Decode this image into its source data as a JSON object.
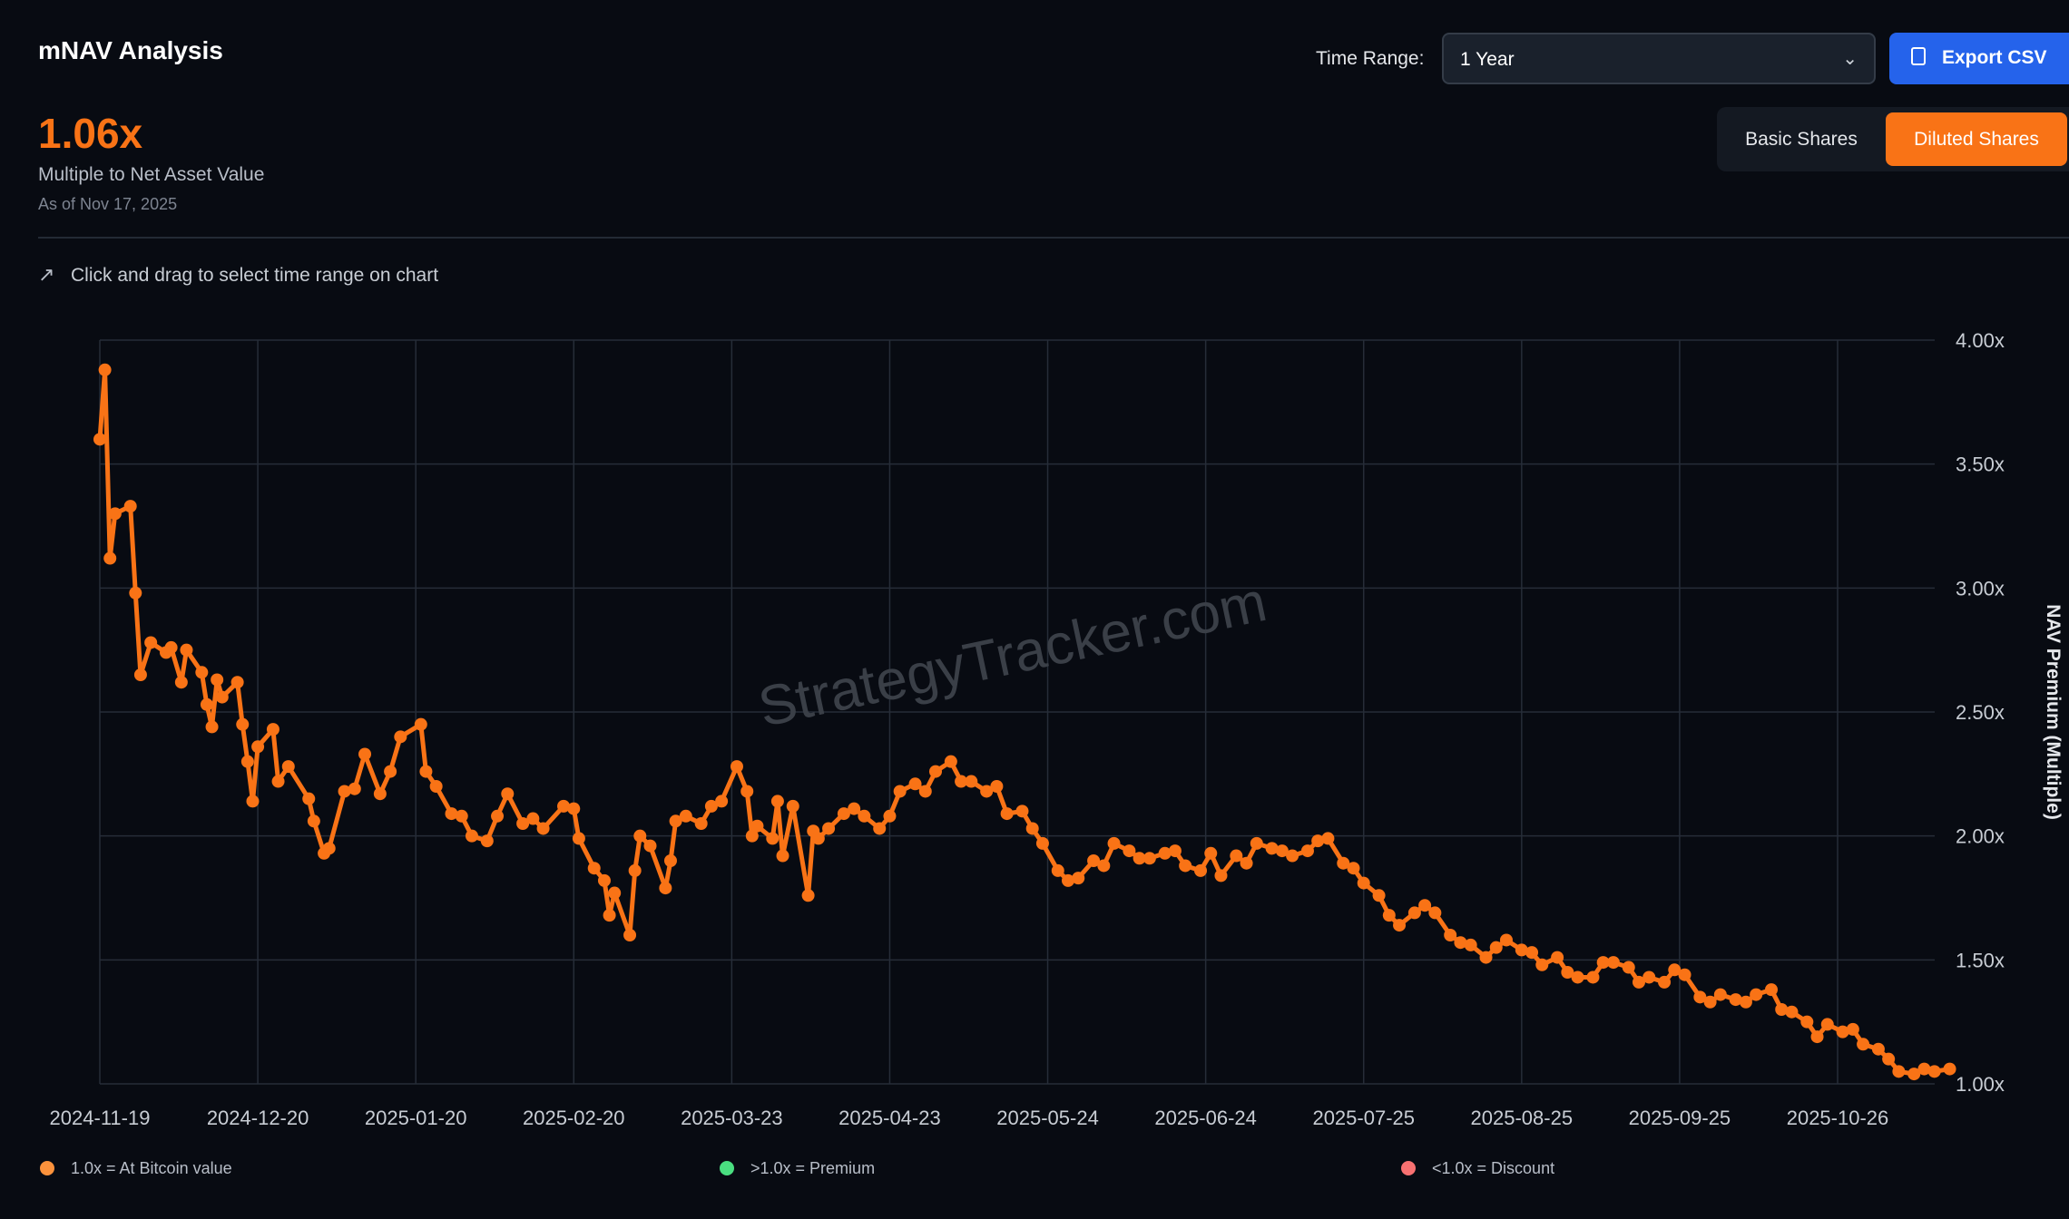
{
  "header": {
    "title": "mNAV Analysis",
    "value": "1.06x",
    "value_label": "Multiple to Net Asset Value",
    "as_of": "As of Nov 17, 2025"
  },
  "controls": {
    "time_range_label": "Time Range:",
    "time_range_value": "1 Year",
    "export_label": "Export CSV",
    "basic_label": "Basic Shares",
    "diluted_label": "Diluted Shares",
    "selected_share_mode": "Diluted Shares"
  },
  "hint": "Click and drag to select time range on chart",
  "watermark": "StrategyTracker.com",
  "legend": [
    {
      "label": "1.0x = At Bitcoin value",
      "color": "#fb923c"
    },
    {
      "label": ">1.0x = Premium",
      "color": "#4ade80"
    },
    {
      "label": "<1.0x = Discount",
      "color": "#f87171"
    }
  ],
  "colors": {
    "series": "#f97316",
    "accent": "#f97316",
    "button": "#2563eb",
    "background": "#080b12"
  },
  "chart_data": {
    "type": "line",
    "ylabel": "NAV Premium (Multiple)",
    "ylim": [
      1.0,
      4.0
    ],
    "yticks": [
      "1.00x",
      "1.50x",
      "2.00x",
      "2.50x",
      "3.00x",
      "3.50x",
      "4.00x"
    ],
    "xticks": [
      "2024-11-19",
      "2024-12-20",
      "2025-01-20",
      "2025-02-20",
      "2025-03-23",
      "2025-04-23",
      "2025-05-24",
      "2025-06-24",
      "2025-07-25",
      "2025-08-25",
      "2025-09-25",
      "2025-10-26"
    ],
    "grid": true,
    "legend_position": "bottom",
    "x": [
      "2024-11-19",
      "2024-11-20",
      "2024-11-21",
      "2024-11-22",
      "2024-11-25",
      "2024-11-26",
      "2024-11-27",
      "2024-11-29",
      "2024-12-02",
      "2024-12-03",
      "2024-12-05",
      "2024-12-06",
      "2024-12-09",
      "2024-12-10",
      "2024-12-11",
      "2024-12-12",
      "2024-12-13",
      "2024-12-16",
      "2024-12-17",
      "2024-12-18",
      "2024-12-19",
      "2024-12-20",
      "2024-12-23",
      "2024-12-24",
      "2024-12-26",
      "2024-12-30",
      "2024-12-31",
      "2025-01-02",
      "2025-01-03",
      "2025-01-06",
      "2025-01-08",
      "2025-01-10",
      "2025-01-13",
      "2025-01-15",
      "2025-01-17",
      "2025-01-21",
      "2025-01-22",
      "2025-01-24",
      "2025-01-27",
      "2025-01-29",
      "2025-01-31",
      "2025-02-03",
      "2025-02-05",
      "2025-02-07",
      "2025-02-10",
      "2025-02-12",
      "2025-02-14",
      "2025-02-18",
      "2025-02-20",
      "2025-02-21",
      "2025-02-24",
      "2025-02-26",
      "2025-02-27",
      "2025-02-28",
      "2025-03-03",
      "2025-03-04",
      "2025-03-05",
      "2025-03-07",
      "2025-03-10",
      "2025-03-11",
      "2025-03-12",
      "2025-03-14",
      "2025-03-17",
      "2025-03-19",
      "2025-03-21",
      "2025-03-24",
      "2025-03-26",
      "2025-03-27",
      "2025-03-28",
      "2025-03-31",
      "2025-04-01",
      "2025-04-02",
      "2025-04-04",
      "2025-04-07",
      "2025-04-08",
      "2025-04-09",
      "2025-04-11",
      "2025-04-14",
      "2025-04-16",
      "2025-04-18",
      "2025-04-21",
      "2025-04-23",
      "2025-04-25",
      "2025-04-28",
      "2025-04-30",
      "2025-05-02",
      "2025-05-05",
      "2025-05-07",
      "2025-05-09",
      "2025-05-12",
      "2025-05-14",
      "2025-05-16",
      "2025-05-19",
      "2025-05-21",
      "2025-05-23",
      "2025-05-26",
      "2025-05-28",
      "2025-05-30",
      "2025-06-02",
      "2025-06-04",
      "2025-06-06",
      "2025-06-09",
      "2025-06-11",
      "2025-06-13",
      "2025-06-16",
      "2025-06-18",
      "2025-06-20",
      "2025-06-23",
      "2025-06-25",
      "2025-06-27",
      "2025-06-30",
      "2025-07-02",
      "2025-07-04",
      "2025-07-07",
      "2025-07-09",
      "2025-07-11",
      "2025-07-14",
      "2025-07-16",
      "2025-07-18",
      "2025-07-21",
      "2025-07-23",
      "2025-07-25",
      "2025-07-28",
      "2025-07-30",
      "2025-08-01",
      "2025-08-04",
      "2025-08-06",
      "2025-08-08",
      "2025-08-11",
      "2025-08-13",
      "2025-08-15",
      "2025-08-18",
      "2025-08-20",
      "2025-08-22",
      "2025-08-25",
      "2025-08-27",
      "2025-08-29",
      "2025-09-01",
      "2025-09-03",
      "2025-09-05",
      "2025-09-08",
      "2025-09-10",
      "2025-09-12",
      "2025-09-15",
      "2025-09-17",
      "2025-09-19",
      "2025-09-22",
      "2025-09-24",
      "2025-09-26",
      "2025-09-29",
      "2025-10-01",
      "2025-10-03",
      "2025-10-06",
      "2025-10-08",
      "2025-10-10",
      "2025-10-13",
      "2025-10-15",
      "2025-10-17",
      "2025-10-20",
      "2025-10-22",
      "2025-10-24",
      "2025-10-27",
      "2025-10-29",
      "2025-10-31",
      "2025-11-03",
      "2025-11-05",
      "2025-11-07",
      "2025-11-10",
      "2025-11-12",
      "2025-11-14",
      "2025-11-17"
    ],
    "values": [
      3.6,
      3.88,
      3.12,
      3.3,
      3.33,
      2.98,
      2.65,
      2.78,
      2.74,
      2.76,
      2.62,
      2.75,
      2.66,
      2.53,
      2.44,
      2.63,
      2.56,
      2.62,
      2.45,
      2.3,
      2.14,
      2.36,
      2.43,
      2.22,
      2.28,
      2.15,
      2.06,
      1.93,
      1.95,
      2.18,
      2.19,
      2.33,
      2.17,
      2.26,
      2.4,
      2.45,
      2.26,
      2.2,
      2.09,
      2.08,
      2.0,
      1.98,
      2.08,
      2.17,
      2.05,
      2.07,
      2.03,
      2.12,
      2.11,
      1.99,
      1.87,
      1.82,
      1.68,
      1.77,
      1.6,
      1.86,
      2.0,
      1.96,
      1.79,
      1.9,
      2.06,
      2.08,
      2.05,
      2.12,
      2.14,
      2.28,
      2.18,
      2.0,
      2.04,
      1.99,
      2.14,
      1.92,
      2.12,
      1.76,
      2.02,
      1.99,
      2.03,
      2.09,
      2.11,
      2.08,
      2.03,
      2.08,
      2.18,
      2.21,
      2.18,
      2.26,
      2.3,
      2.22,
      2.22,
      2.18,
      2.2,
      2.09,
      2.1,
      2.03,
      1.97,
      1.86,
      1.82,
      1.83,
      1.9,
      1.88,
      1.97,
      1.94,
      1.91,
      1.91,
      1.93,
      1.94,
      1.88,
      1.86,
      1.93,
      1.84,
      1.92,
      1.89,
      1.97,
      1.95,
      1.94,
      1.92,
      1.94,
      1.98,
      1.99,
      1.89,
      1.87,
      1.81,
      1.76,
      1.68,
      1.64,
      1.69,
      1.72,
      1.69,
      1.6,
      1.57,
      1.56,
      1.51,
      1.55,
      1.58,
      1.54,
      1.53,
      1.48,
      1.51,
      1.45,
      1.43,
      1.43,
      1.49,
      1.49,
      1.47,
      1.41,
      1.43,
      1.41,
      1.46,
      1.44,
      1.35,
      1.33,
      1.36,
      1.34,
      1.33,
      1.36,
      1.38,
      1.3,
      1.29,
      1.25,
      1.19,
      1.24,
      1.21,
      1.22,
      1.16,
      1.14,
      1.1,
      1.05,
      1.04,
      1.06,
      1.05,
      1.06
    ]
  }
}
